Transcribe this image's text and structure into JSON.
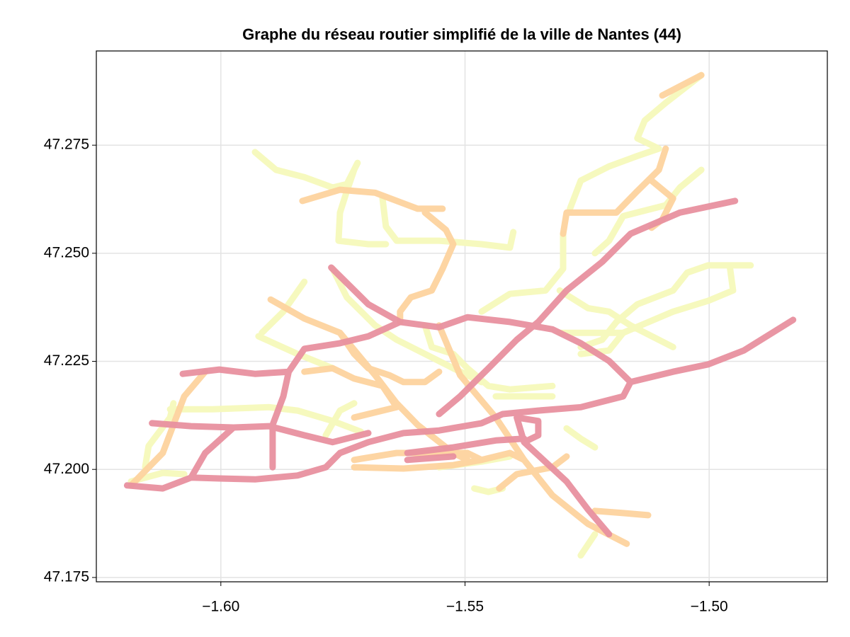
{
  "chart_data": {
    "type": "line",
    "title": "Graphe du réseau routier simplifié de la ville de Nantes (44)",
    "xlim": [
      -1.6255,
      -1.4758
    ],
    "ylim": [
      47.174,
      47.2968
    ],
    "xticks": [
      {
        "value": -1.6,
        "label": "−1.60"
      },
      {
        "value": -1.55,
        "label": "−1.55"
      },
      {
        "value": -1.5,
        "label": "−1.50"
      }
    ],
    "yticks": [
      47.175,
      {
        "value": 47.2,
        "label": "47.200"
      },
      47.225,
      {
        "value": 47.25,
        "label": "47.250"
      },
      47.275
    ],
    "grid": true,
    "series": [
      {
        "color": "#f5f9bb",
        "x": [
          -1.593,
          -1.5887,
          -1.5829,
          -1.5771,
          -1.5742,
          -1.572,
          null,
          -1.5727,
          -1.5742,
          -1.5756,
          -1.5759,
          -1.5698,
          -1.5662,
          null,
          -1.5669,
          -1.5662,
          -1.564,
          -1.5553,
          -1.5466,
          -1.5408,
          -1.5401,
          null,
          -1.5016,
          -1.5089,
          -1.5132,
          -1.5147,
          -1.5103,
          null,
          -1.5103,
          -1.5147,
          -1.5205,
          -1.5263,
          -1.5285,
          null,
          -1.5016,
          -1.506,
          -1.5089,
          -1.5176,
          -1.5205,
          -1.5234,
          null,
          -1.5299,
          -1.5299,
          -1.5335,
          -1.5408,
          -1.5466,
          null,
          -1.4915,
          -1.5002,
          -1.5045,
          -1.5074,
          -1.5147,
          -1.519,
          -1.5219,
          -1.5263,
          null,
          -1.4958,
          -1.4951,
          -1.5002,
          -1.5074,
          -1.5176,
          -1.5205,
          -1.5263,
          null,
          -1.5306,
          -1.5248,
          -1.5205,
          -1.5161,
          -1.5074,
          null,
          -1.5176,
          -1.5248,
          -1.5306,
          null,
          -1.5829,
          -1.5872,
          -1.5916,
          null,
          -1.5923,
          -1.5843,
          -1.5771,
          null,
          -1.5771,
          -1.5742,
          -1.5684,
          -1.564,
          -1.5582,
          -1.5524,
          -1.5466,
          null,
          -1.5582,
          -1.5568,
          -1.5524,
          -1.5495,
          -1.5452,
          -1.5408,
          -1.5321,
          null,
          -1.6104,
          -1.6017,
          -1.5901,
          -1.5843,
          -1.5771,
          -1.5713,
          null,
          -1.6155,
          -1.6148,
          -1.6104,
          -1.6097,
          null,
          -1.6184,
          -1.6119,
          -1.6075,
          null,
          -1.5553,
          -1.5466,
          -1.5408,
          null,
          -1.5292,
          -1.5263,
          -1.5234,
          null,
          -1.5234,
          -1.5263,
          null,
          -1.5481,
          -1.5452,
          -1.5423,
          null,
          -1.5437,
          -1.5379,
          -1.5321,
          null,
          -1.5785,
          -1.5756,
          -1.5727
        ],
        "values": [
          47.2734,
          47.2693,
          47.2676,
          47.2652,
          47.266,
          47.2709,
          null,
          47.2693,
          47.2644,
          47.2594,
          47.2529,
          47.2521,
          47.2521,
          null,
          47.2627,
          47.2562,
          47.2529,
          47.2529,
          47.2521,
          47.2513,
          47.2549,
          null,
          47.2912,
          47.2848,
          47.2807,
          47.2766,
          47.2742,
          null,
          47.2742,
          47.2725,
          47.2701,
          47.2668,
          47.2603,
          null,
          47.2693,
          47.2652,
          47.2611,
          47.2586,
          47.2529,
          47.25,
          null,
          47.2545,
          47.2464,
          47.2414,
          47.2406,
          47.2365,
          null,
          47.2472,
          47.2472,
          47.2455,
          47.2414,
          47.2382,
          47.2341,
          47.23,
          47.2283,
          null,
          47.2472,
          47.2414,
          47.239,
          47.2365,
          47.2316,
          47.2275,
          47.2267,
          null,
          47.2414,
          47.2373,
          47.2365,
          47.2333,
          47.2283,
          null,
          47.2316,
          47.2316,
          47.2316,
          null,
          47.2434,
          47.2365,
          47.2316,
          null,
          47.2308,
          47.2267,
          47.2234,
          null,
          47.2464,
          47.2398,
          47.2333,
          47.23,
          47.2267,
          47.2234,
          47.2202,
          null,
          47.2333,
          47.2283,
          47.2267,
          47.2234,
          47.2193,
          47.2185,
          47.2193,
          null,
          47.2139,
          47.2139,
          47.2144,
          47.2136,
          47.2112,
          47.2087,
          null,
          47.2005,
          47.2054,
          47.212,
          47.2153,
          null,
          47.1972,
          47.1992,
          47.1989,
          null,
          47.2005,
          47.2018,
          47.203,
          null,
          47.2095,
          47.2071,
          47.2051,
          null,
          47.185,
          47.1801,
          null,
          47.1956,
          47.1948,
          47.1956,
          null,
          47.2169,
          47.2169,
          47.2169,
          null,
          47.2079,
          47.2136,
          47.2153
        ]
      },
      {
        "color": "#fdd39e",
        "x": [
          -1.5833,
          -1.5756,
          -1.5684,
          -1.5597,
          -1.5546,
          null,
          -1.5582,
          -1.5539,
          -1.5524,
          -1.5546,
          -1.5568,
          -1.5611,
          -1.5633,
          -1.5633,
          null,
          -1.5089,
          -1.5103,
          -1.5147,
          -1.519,
          -1.5292,
          -1.5299,
          null,
          -1.5898,
          -1.5829,
          -1.5756,
          -1.5727,
          -1.5698,
          -1.5655,
          -1.5626,
          -1.5582,
          -1.5553,
          null,
          -1.5756,
          -1.5684,
          -1.564,
          -1.5597,
          -1.5524,
          -1.5495,
          null,
          -1.5553,
          -1.551,
          -1.5437,
          -1.5379,
          -1.5321,
          -1.5248,
          -1.5169,
          null,
          -1.5727,
          -1.564,
          -1.5582,
          -1.5495,
          -1.5466,
          null,
          -1.5727,
          -1.5626,
          -1.5524,
          -1.5466,
          -1.5408,
          -1.5379,
          null,
          -1.543,
          -1.5394,
          -1.5321,
          -1.5292,
          null,
          -1.6184,
          -1.6119,
          -1.6075,
          -1.6032,
          null,
          -1.5234,
          -1.5176,
          -1.5125,
          null,
          -1.5096,
          -1.5016,
          null,
          -1.5118,
          -1.5074,
          -1.5096,
          -1.5118,
          null,
          -1.5829,
          -1.5771,
          -1.5727,
          -1.5669,
          -1.564,
          -1.5669,
          -1.5727
        ],
        "values": [
          47.2621,
          47.2647,
          47.264,
          47.2603,
          47.2603,
          null,
          47.2594,
          47.2554,
          47.2521,
          47.2464,
          47.2414,
          47.2398,
          47.2365,
          47.2341,
          null,
          47.2742,
          47.2693,
          47.2644,
          47.2594,
          47.2594,
          47.2545,
          null,
          47.2393,
          47.2349,
          47.2316,
          47.2267,
          47.2234,
          47.2218,
          47.2202,
          47.2202,
          47.2226,
          null,
          47.2316,
          47.2218,
          47.2153,
          47.2103,
          47.2038,
          47.2022,
          null,
          47.2333,
          47.2218,
          47.212,
          47.2022,
          47.194,
          47.1874,
          47.1828,
          null,
          47.2022,
          47.2038,
          47.2038,
          47.2038,
          47.2022,
          null,
          47.2005,
          47.2002,
          47.201,
          47.2022,
          47.2038,
          47.2022,
          null,
          47.1956,
          47.1989,
          47.2005,
          47.203,
          null,
          47.1963,
          47.2038,
          47.2169,
          47.2226,
          null,
          47.1904,
          47.1899,
          47.1894,
          null,
          47.2865,
          47.2912,
          null,
          47.2668,
          47.2627,
          47.2578,
          47.2559,
          null,
          47.2226,
          47.2234,
          47.221,
          47.2193,
          47.2144,
          47.2136,
          47.212
        ]
      },
      {
        "color": "#e8909f",
        "x": [
          -1.6192,
          -1.6119,
          -1.6061,
          -1.6003,
          -1.593,
          -1.5843,
          -1.5785,
          -1.5756,
          -1.5698,
          -1.5626,
          -1.5553,
          -1.5466,
          -1.5423,
          -1.535,
          -1.5263,
          -1.5176,
          -1.5161,
          -1.5074,
          -1.5002,
          -1.4929,
          -1.4828,
          null,
          -1.4947,
          -1.506,
          -1.5161,
          -1.5219,
          -1.5292,
          -1.535,
          -1.5394,
          -1.5452,
          -1.551,
          -1.5553,
          null,
          -1.5774,
          -1.5698,
          -1.5633,
          -1.5553,
          -1.5495,
          -1.5408,
          -1.5321,
          -1.5263,
          -1.5205,
          -1.5161,
          null,
          -1.6078,
          -1.6003,
          -1.593,
          -1.5861,
          -1.5829,
          -1.5756,
          -1.5698,
          -1.5633,
          null,
          -1.5861,
          -1.5872,
          -1.5894,
          -1.5894,
          null,
          -1.6141,
          -1.6061,
          -1.5974,
          -1.5901,
          -1.5829,
          -1.5771,
          -1.5698,
          null,
          -1.5974,
          -1.6032,
          -1.6061,
          null,
          -1.5394,
          -1.5379,
          -1.5292,
          -1.5248,
          -1.5205,
          null,
          -1.5618,
          -1.5524,
          -1.5437,
          -1.5379,
          null,
          -1.5618,
          -1.5524,
          null,
          -1.5394,
          -1.535,
          -1.535,
          -1.5379
        ],
        "values": [
          47.1963,
          47.1956,
          47.1981,
          47.1979,
          47.1977,
          47.1986,
          47.2005,
          47.2038,
          47.2063,
          47.2084,
          47.209,
          47.2107,
          47.2128,
          47.2136,
          47.2144,
          47.2169,
          47.2202,
          47.2226,
          47.2243,
          47.2275,
          47.2346,
          null,
          47.2621,
          47.2594,
          47.2545,
          47.248,
          47.2414,
          47.2341,
          47.23,
          47.2234,
          47.2169,
          47.2128,
          null,
          47.2467,
          47.2382,
          47.2341,
          47.2329,
          47.2352,
          47.2341,
          47.2324,
          47.2292,
          47.2251,
          47.2202,
          null,
          47.2221,
          47.2231,
          47.2221,
          47.2226,
          47.2279,
          47.2292,
          47.2308,
          47.2341,
          null,
          47.2226,
          47.2169,
          47.2103,
          47.2005,
          null,
          47.2107,
          47.21,
          47.2097,
          47.21,
          47.2079,
          47.2063,
          47.2084,
          null,
          47.2097,
          47.2038,
          47.1981,
          null,
          47.212,
          47.2063,
          47.1972,
          47.1907,
          47.185,
          null,
          47.2038,
          47.2051,
          47.2067,
          47.2071,
          null,
          47.2022,
          47.203,
          null,
          47.212,
          47.2112,
          47.2079,
          47.2063
        ]
      }
    ]
  }
}
